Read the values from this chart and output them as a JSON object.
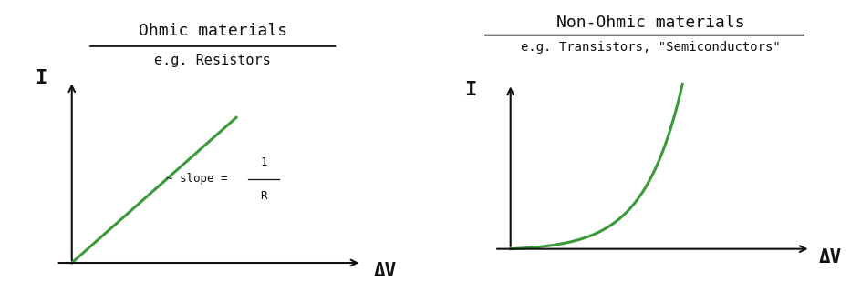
{
  "bg_color": "#ffffff",
  "line_color": "#3a9a3a",
  "axis_color": "#111111",
  "text_color": "#111111",
  "left_title1": "Ohmic materials",
  "left_title2": "e.g. Resistors",
  "left_xlabel": "ΔV",
  "left_ylabel": "I",
  "right_title1": "Non-Ohmic materials",
  "right_title2": "e.g. Transistors, \"Semiconductors\"",
  "right_xlabel": "ΔV",
  "right_ylabel": "I",
  "line_width": 2.2
}
